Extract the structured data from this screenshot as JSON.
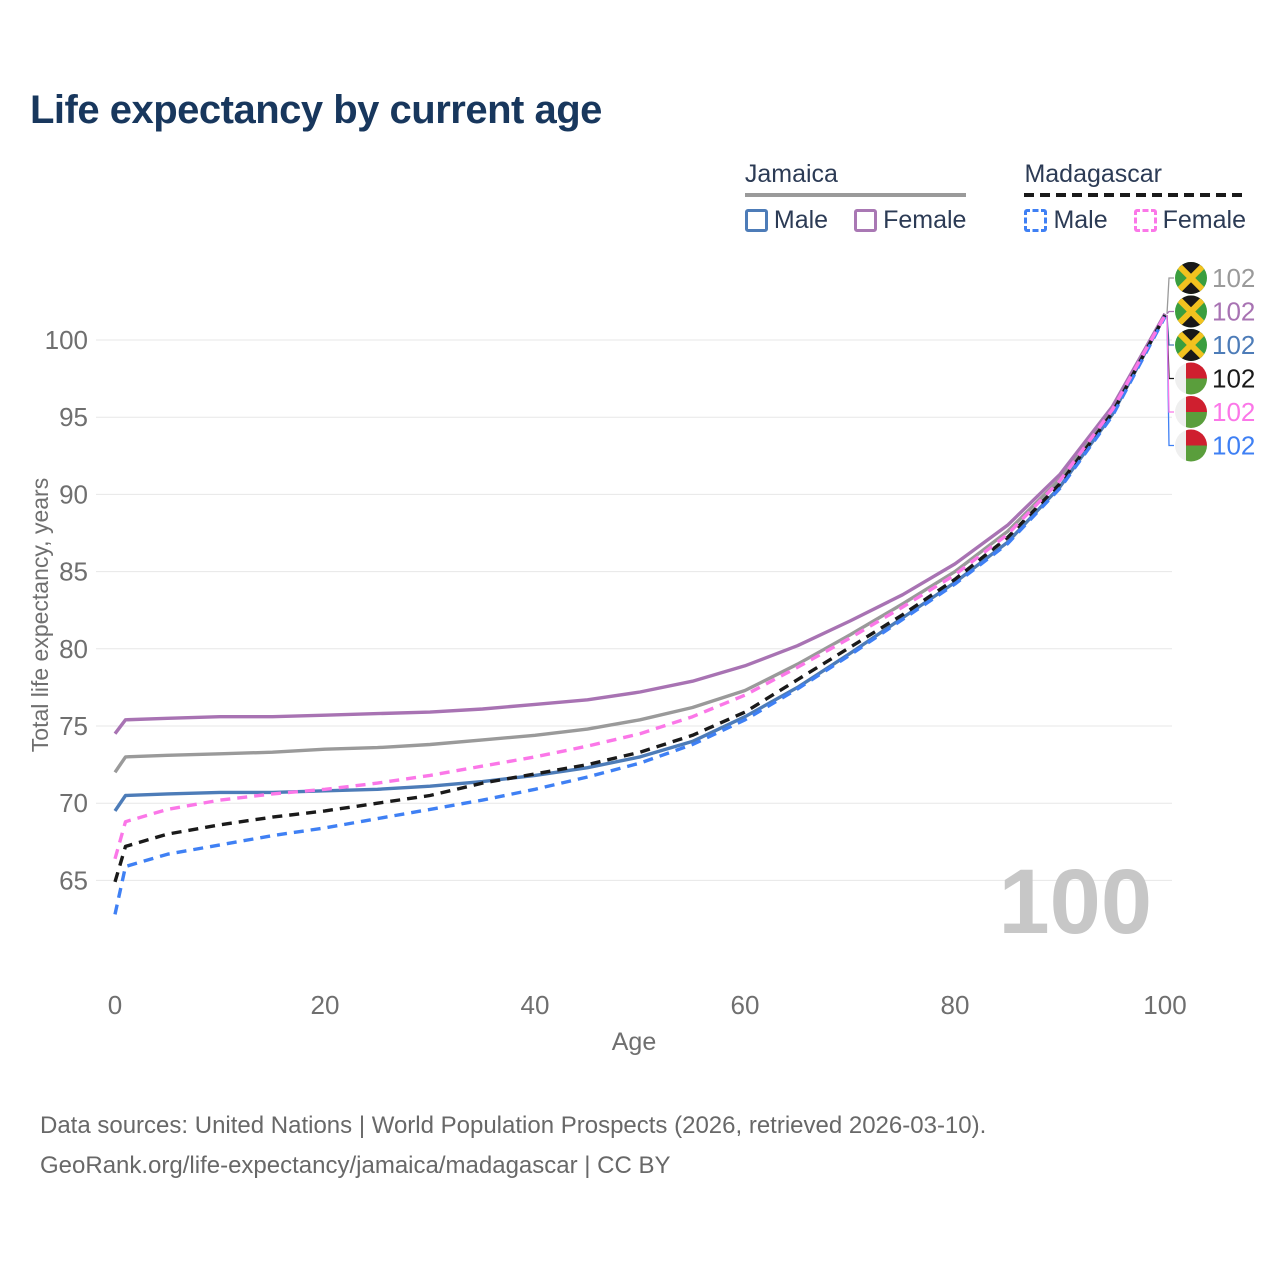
{
  "header": {
    "title": "Life expectancy by current age"
  },
  "legend": {
    "groups": [
      {
        "id": "jamaica",
        "label": "Jamaica",
        "line_style": "solid",
        "line_color": "#9a9a9a",
        "items": [
          {
            "label": "Male",
            "swatch_color": "#4d7cb8",
            "swatch_style": "solid"
          },
          {
            "label": "Female",
            "swatch_color": "#a978b4",
            "swatch_style": "solid"
          }
        ]
      },
      {
        "id": "madagascar",
        "label": "Madagascar",
        "line_style": "dashed",
        "line_color": "#1a1a1a",
        "items": [
          {
            "label": "Male",
            "swatch_color": "#3f80f4",
            "swatch_style": "dashed"
          },
          {
            "label": "Female",
            "swatch_color": "#fb77e8",
            "swatch_style": "dashed"
          }
        ]
      }
    ]
  },
  "chart_data": {
    "type": "line",
    "title": "Life expectancy by current age",
    "xlabel": "Age",
    "ylabel": "Total life expectancy, years",
    "xlim": [
      0,
      100
    ],
    "ylim": [
      62,
      103
    ],
    "xticks": [
      0,
      20,
      40,
      60,
      80,
      100
    ],
    "yticks": [
      65,
      70,
      75,
      80,
      85,
      90,
      95,
      100
    ],
    "grid": "horizontal",
    "grid_color": "#e7e7e7",
    "tick_color": "#6f6f6f",
    "legend_position": "top-right",
    "hover_age_label": "100",
    "x": [
      0,
      1,
      5,
      10,
      15,
      20,
      25,
      30,
      35,
      40,
      45,
      50,
      55,
      60,
      65,
      70,
      75,
      80,
      85,
      90,
      95,
      100
    ],
    "series": [
      {
        "name": "Jamaica",
        "country": "jamaica",
        "group": "Both sexes",
        "color": "#9a9a9a",
        "dashed": false,
        "label_row": 0,
        "end_label": "102",
        "values": [
          72.0,
          73.0,
          73.1,
          73.2,
          73.3,
          73.5,
          73.6,
          73.8,
          74.1,
          74.4,
          74.8,
          75.4,
          76.2,
          77.3,
          79.0,
          80.9,
          82.9,
          85.0,
          87.6,
          91.0,
          95.4,
          101.7
        ]
      },
      {
        "name": "Jamaica Female",
        "country": "jamaica",
        "group": "Female",
        "color": "#a873b3",
        "dashed": false,
        "label_row": 1,
        "end_label": "102",
        "values": [
          74.5,
          75.4,
          75.5,
          75.6,
          75.6,
          75.7,
          75.8,
          75.9,
          76.1,
          76.4,
          76.7,
          77.2,
          77.9,
          78.9,
          80.2,
          81.8,
          83.5,
          85.5,
          88.0,
          91.3,
          95.7,
          101.7
        ]
      },
      {
        "name": "Jamaica Male",
        "country": "jamaica",
        "group": "Male",
        "color": "#4d7cb8",
        "dashed": false,
        "label_row": 2,
        "end_label": "102",
        "values": [
          69.5,
          70.5,
          70.6,
          70.7,
          70.7,
          70.8,
          70.9,
          71.1,
          71.4,
          71.8,
          72.3,
          73.0,
          74.0,
          75.6,
          77.5,
          79.7,
          82.0,
          84.3,
          86.9,
          90.5,
          95.2,
          101.6
        ]
      },
      {
        "name": "Madagascar",
        "country": "madagascar",
        "group": "Both sexes",
        "color": "#1a1a1a",
        "dashed": true,
        "label_row": 3,
        "end_label": "102",
        "values": [
          64.9,
          67.2,
          68.0,
          68.6,
          69.1,
          69.5,
          70.0,
          70.5,
          71.3,
          71.9,
          72.5,
          73.3,
          74.4,
          75.9,
          78.0,
          80.1,
          82.2,
          84.5,
          87.2,
          90.7,
          95.3,
          101.6
        ]
      },
      {
        "name": "Madagascar Male",
        "country": "madagascar",
        "group": "Male",
        "color": "#3f80f4",
        "dashed": true,
        "label_row": 5,
        "end_label": "102",
        "values": [
          62.8,
          65.9,
          66.7,
          67.3,
          67.9,
          68.4,
          69.0,
          69.6,
          70.2,
          70.9,
          71.7,
          72.6,
          73.8,
          75.4,
          77.4,
          79.6,
          81.9,
          84.2,
          86.8,
          90.4,
          95.1,
          101.5
        ]
      },
      {
        "name": "Madagascar Female",
        "country": "madagascar",
        "group": "Female",
        "color": "#fb77e8",
        "dashed": true,
        "label_row": 4,
        "end_label": "102",
        "values": [
          66.4,
          68.8,
          69.6,
          70.2,
          70.6,
          70.9,
          71.3,
          71.8,
          72.4,
          73.0,
          73.7,
          74.5,
          75.6,
          77.0,
          78.8,
          80.7,
          82.7,
          84.8,
          87.4,
          90.9,
          95.5,
          101.6
        ]
      }
    ]
  },
  "footer": {
    "line1": "Data sources: United Nations | World Population Prospects (2026, retrieved 2026-03-10).",
    "line2": "GeoRank.org/life-expectancy/jamaica/madagascar | CC BY"
  }
}
